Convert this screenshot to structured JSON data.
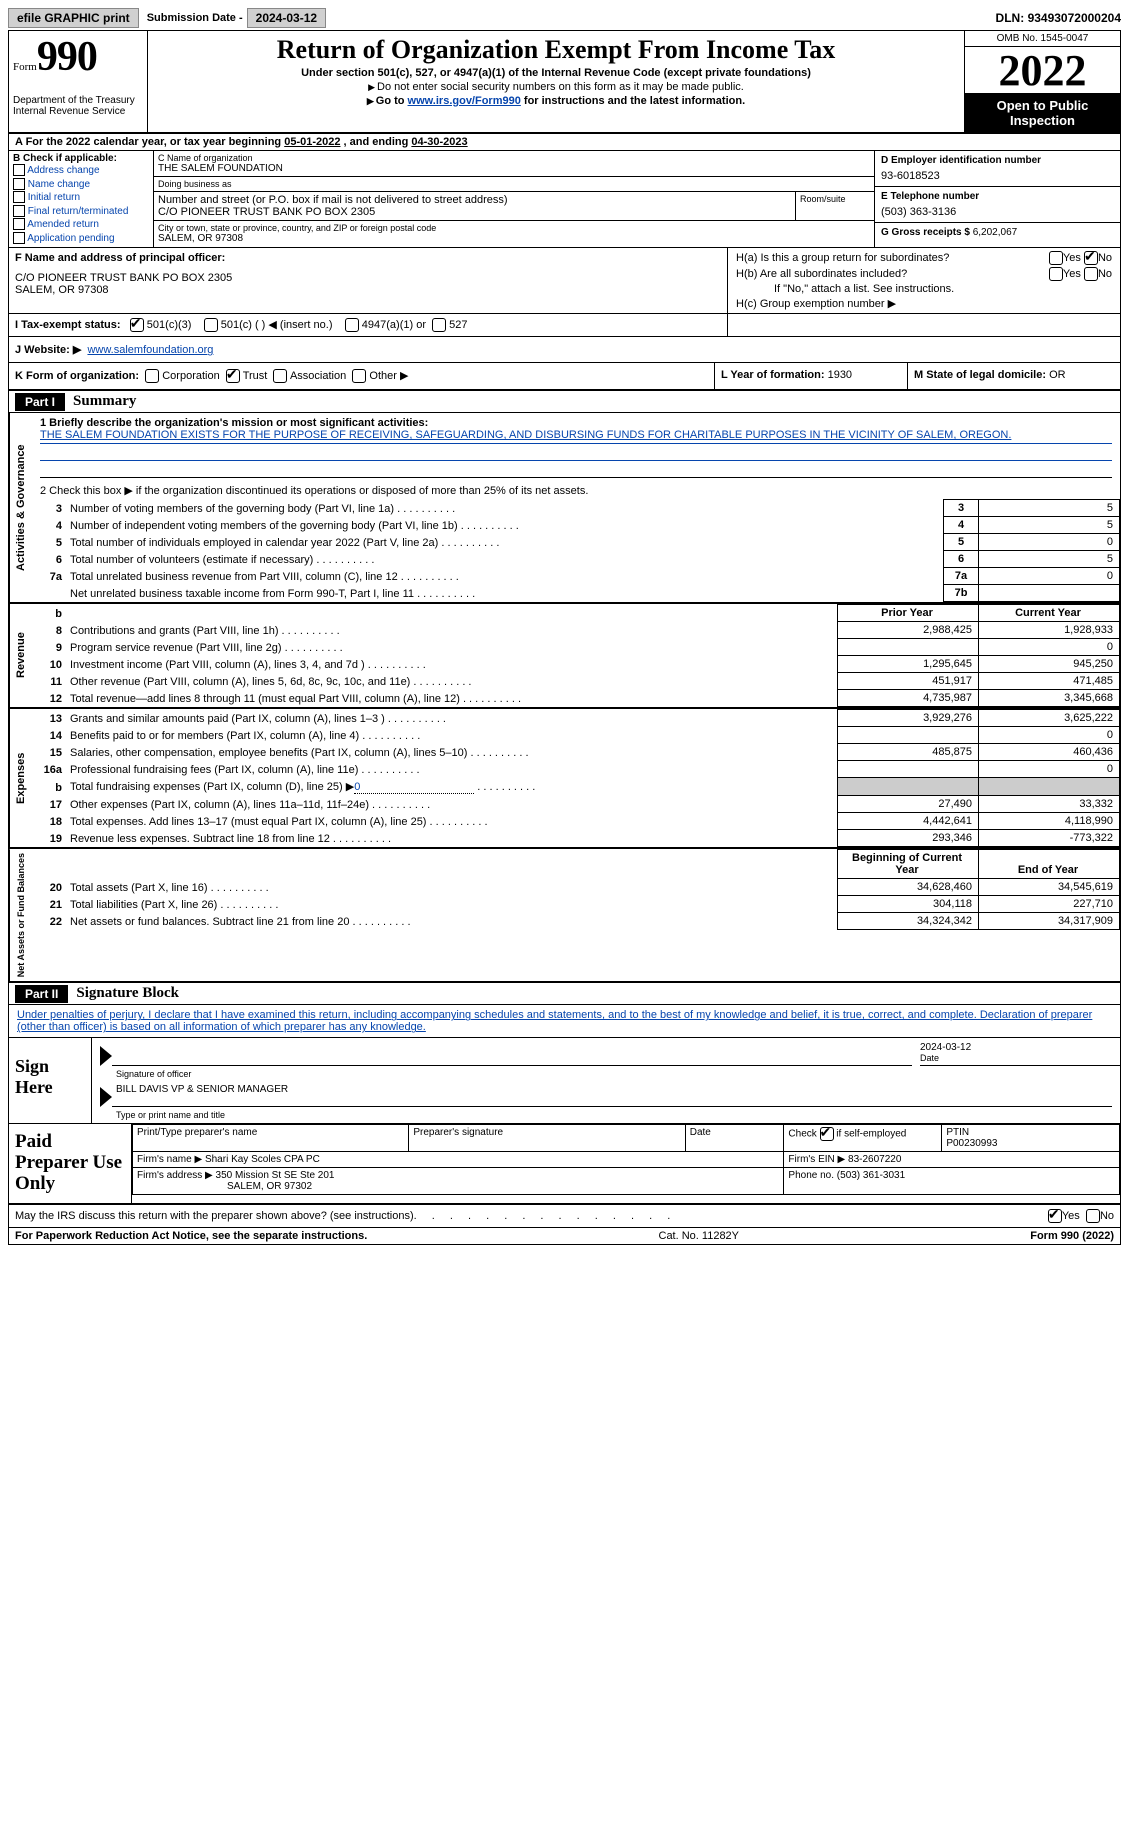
{
  "top": {
    "efile": "efile GRAPHIC print",
    "sub_lbl": "Submission Date -",
    "sub_val": "2024-03-12",
    "dln_lbl": "DLN:",
    "dln_val": "93493072000204"
  },
  "hd": {
    "form_word": "Form",
    "form_num": "990",
    "dept": "Department of the Treasury Internal Revenue Service",
    "title": "Return of Organization Exempt From Income Tax",
    "sub1": "Under section 501(c), 527, or 4947(a)(1) of the Internal Revenue Code (except private foundations)",
    "sub2": "Do not enter social security numbers on this form as it may be made public.",
    "sub3a": "Go to ",
    "sub3link": "www.irs.gov/Form990",
    "sub3b": " for instructions and the latest information.",
    "omb": "OMB No. 1545-0047",
    "year": "2022",
    "otp1": "Open to Public",
    "otp2": "Inspection"
  },
  "A": {
    "prefix": "A For the 2022 calendar year, or tax year beginning ",
    "begin": "05-01-2022",
    "mid": " , and ending ",
    "end": "04-30-2023"
  },
  "B": {
    "lbl": "B Check if applicable:",
    "opts": [
      "Address change",
      "Name change",
      "Initial return",
      "Final return/terminated",
      "Amended return",
      "Application pending"
    ]
  },
  "C": {
    "name_hint": "C Name of organization",
    "name": "THE SALEM FOUNDATION",
    "dba_hint": "Doing business as",
    "dba": "",
    "street_hint": "Number and street (or P.O. box if mail is not delivered to street address)",
    "street": "C/O PIONEER TRUST BANK PO BOX 2305",
    "suite_hint": "Room/suite",
    "city_hint": "City or town, state or province, country, and ZIP or foreign postal code",
    "city": "SALEM, OR  97308"
  },
  "D": {
    "ein_lbl": "D Employer identification number",
    "ein": "93-6018523",
    "phone_lbl": "E Telephone number",
    "phone": "(503) 363-3136",
    "gross_lbl": "G Gross receipts $",
    "gross": "6,202,067"
  },
  "F": {
    "lbl": "F Name and address of principal officer:",
    "line1": "C/O PIONEER TRUST BANK PO BOX 2305",
    "line2": "SALEM, OR  97308"
  },
  "H": {
    "a": "H(a)  Is this a group return for subordinates?",
    "b": "H(b)  Are all subordinates included?",
    "b_note": "If \"No,\" attach a list. See instructions.",
    "c": "H(c)  Group exemption number ▶",
    "yes": "Yes",
    "no": "No"
  },
  "I": {
    "lbl": "I   Tax-exempt status:",
    "o1": "501(c)(3)",
    "o2": "501(c) (  ) ◀ (insert no.)",
    "o3": "4947(a)(1) or",
    "o4": "527"
  },
  "J": {
    "lbl": "J   Website: ▶",
    "val": "www.salemfoundation.org"
  },
  "K": {
    "lbl": "K Form of organization:",
    "o1": "Corporation",
    "o2": "Trust",
    "o3": "Association",
    "o4": "Other ▶"
  },
  "L": {
    "lbl": "L Year of formation:",
    "val": "1930"
  },
  "M": {
    "lbl": "M State of legal domicile:",
    "val": "OR"
  },
  "part1": {
    "tag": "Part I",
    "title": "Summary"
  },
  "mission_lbl": "1  Briefly describe the organization's mission or most significant activities:",
  "mission": "THE SALEM FOUNDATION EXISTS FOR THE PURPOSE OF RECEIVING, SAFEGUARDING, AND DISBURSING FUNDS FOR CHARITABLE PURPOSES IN THE VICINITY OF SALEM, OREGON.",
  "line2": "2   Check this box ▶      if the organization discontinued its operations or disposed of more than 25% of its net assets.",
  "gov_rows": [
    {
      "n": "3",
      "t": "Number of voting members of the governing body (Part VI, line 1a)",
      "box": "3",
      "v": "5"
    },
    {
      "n": "4",
      "t": "Number of independent voting members of the governing body (Part VI, line 1b)",
      "box": "4",
      "v": "5"
    },
    {
      "n": "5",
      "t": "Total number of individuals employed in calendar year 2022 (Part V, line 2a)",
      "box": "5",
      "v": "0"
    },
    {
      "n": "6",
      "t": "Total number of volunteers (estimate if necessary)",
      "box": "6",
      "v": "5"
    },
    {
      "n": "7a",
      "t": "Total unrelated business revenue from Part VIII, column (C), line 12",
      "box": "7a",
      "v": "0"
    },
    {
      "n": "",
      "t": "Net unrelated business taxable income from Form 990-T, Part I, line 11",
      "box": "7b",
      "v": ""
    }
  ],
  "col_headers": {
    "n": "b",
    "prior": "Prior Year",
    "curr": "Current Year"
  },
  "rev_rows": [
    {
      "n": "8",
      "t": "Contributions and grants (Part VIII, line 1h)",
      "p": "2,988,425",
      "c": "1,928,933"
    },
    {
      "n": "9",
      "t": "Program service revenue (Part VIII, line 2g)",
      "p": "",
      "c": "0"
    },
    {
      "n": "10",
      "t": "Investment income (Part VIII, column (A), lines 3, 4, and 7d )",
      "p": "1,295,645",
      "c": "945,250"
    },
    {
      "n": "11",
      "t": "Other revenue (Part VIII, column (A), lines 5, 6d, 8c, 9c, 10c, and 11e)",
      "p": "451,917",
      "c": "471,485"
    },
    {
      "n": "12",
      "t": "Total revenue—add lines 8 through 11 (must equal Part VIII, column (A), line 12)",
      "p": "4,735,987",
      "c": "3,345,668"
    }
  ],
  "exp_rows": [
    {
      "n": "13",
      "t": "Grants and similar amounts paid (Part IX, column (A), lines 1–3 )",
      "p": "3,929,276",
      "c": "3,625,222"
    },
    {
      "n": "14",
      "t": "Benefits paid to or for members (Part IX, column (A), line 4)",
      "p": "",
      "c": "0"
    },
    {
      "n": "15",
      "t": "Salaries, other compensation, employee benefits (Part IX, column (A), lines 5–10)",
      "p": "485,875",
      "c": "460,436"
    },
    {
      "n": "16a",
      "t": "Professional fundraising fees (Part IX, column (A), line 11e)",
      "p": "",
      "c": "0"
    },
    {
      "n": "b",
      "t": "Total fundraising expenses (Part IX, column (D), line 25) ▶",
      "p": "SHADE",
      "c": "SHADE",
      "inline": "0"
    },
    {
      "n": "17",
      "t": "Other expenses (Part IX, column (A), lines 11a–11d, 11f–24e)",
      "p": "27,490",
      "c": "33,332"
    },
    {
      "n": "18",
      "t": "Total expenses. Add lines 13–17 (must equal Part IX, column (A), line 25)",
      "p": "4,442,641",
      "c": "4,118,990"
    },
    {
      "n": "19",
      "t": "Revenue less expenses. Subtract line 18 from line 12",
      "p": "293,346",
      "c": "-773,322"
    }
  ],
  "net_headers": {
    "prior": "Beginning of Current Year",
    "curr": "End of Year"
  },
  "net_rows": [
    {
      "n": "20",
      "t": "Total assets (Part X, line 16)",
      "p": "34,628,460",
      "c": "34,545,619"
    },
    {
      "n": "21",
      "t": "Total liabilities (Part X, line 26)",
      "p": "304,118",
      "c": "227,710"
    },
    {
      "n": "22",
      "t": "Net assets or fund balances. Subtract line 21 from line 20",
      "p": "34,324,342",
      "c": "34,317,909"
    }
  ],
  "side": {
    "gov": "Activities & Governance",
    "rev": "Revenue",
    "exp": "Expenses",
    "net": "Net Assets or Fund Balances"
  },
  "part2": {
    "tag": "Part II",
    "title": "Signature Block"
  },
  "perjury": "Under penalties of perjury, I declare that I have examined this return, including accompanying schedules and statements, and to the best of my knowledge and belief, it is true, correct, and complete. Declaration of preparer (other than officer) is based on all information of which preparer has any knowledge.",
  "sign": {
    "here": "Sign Here",
    "sig_lbl": "Signature of officer",
    "date_lbl": "Date",
    "date_val": "2024-03-12",
    "name_val": "BILL DAVIS  VP & SENIOR MANAGER",
    "name_lbl": "Type or print name and title"
  },
  "prep": {
    "title": "Paid Preparer Use Only",
    "h_name": "Print/Type preparer's name",
    "h_sig": "Preparer's signature",
    "h_date": "Date",
    "h_check": "Check        if self-employed",
    "h_ptin": "PTIN",
    "ptin": "P00230993",
    "firm_lbl": "Firm's name    ▶",
    "firm": "Shari Kay Scoles CPA PC",
    "ein_lbl": "Firm's EIN ▶",
    "ein": "83-2607220",
    "addr_lbl": "Firm's address ▶",
    "addr1": "350 Mission St SE Ste 201",
    "addr2": "SALEM, OR  97302",
    "phone_lbl": "Phone no.",
    "phone": "(503) 361-3031"
  },
  "discuss": "May the IRS discuss this return with the preparer shown above? (see instructions)",
  "foot": {
    "pra": "For Paperwork Reduction Act Notice, see the separate instructions.",
    "cat": "Cat. No. 11282Y",
    "form": "Form 990 (2022)"
  }
}
